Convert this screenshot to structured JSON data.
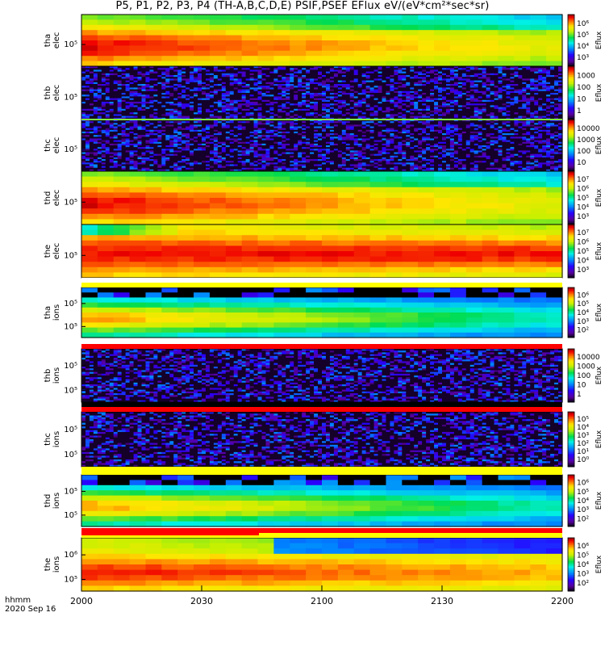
{
  "title": "P5, P1, P2, P3, P4 (TH-A,B,C,D,E) PSIF,PSEF EFlux eV/(eV*cm²*sec*sr)",
  "x_axis": {
    "line1": "hhmm",
    "line2": "2020 Sep 16",
    "tick_labels": [
      "2000",
      "2030",
      "2100",
      "2130",
      "2200"
    ]
  },
  "colors": {
    "background": "#ffffff",
    "missing": "#000000"
  },
  "chart_data": [
    {
      "type": "heatmap",
      "probe": "tha",
      "species": "elec",
      "ylabel": [
        "tha",
        "elec"
      ],
      "ytick": "10⁵",
      "colorbar_label": "Eflux",
      "colorbar_ticks": [
        "10⁶",
        "10⁵",
        "10⁴",
        "10³"
      ],
      "cmin": 2.5,
      "cmax": 6.6,
      "pattern": "steady_hot"
    },
    {
      "type": "heatmap",
      "probe": "thb",
      "species": "elec",
      "ylabel": [
        "thb",
        "elec"
      ],
      "ytick": "10⁵",
      "colorbar_label": "Eflux",
      "colorbar_ticks": [
        "1000",
        "100",
        "10",
        "1"
      ],
      "cmin": 0,
      "cmax": 3.8,
      "pattern": "noise"
    },
    {
      "type": "heatmap",
      "probe": "thc",
      "species": "elec",
      "ylabel": [
        "thc",
        "elec"
      ],
      "ytick": "10⁵",
      "colorbar_label": "Eflux",
      "colorbar_ticks": [
        "10000",
        "1000",
        "100",
        "10"
      ],
      "cmin": 0,
      "cmax": 4.6,
      "pattern": "noise"
    },
    {
      "type": "heatmap",
      "probe": "thd",
      "species": "elec",
      "ylabel": [
        "thd",
        "elec"
      ],
      "ytick": "10⁵",
      "colorbar_label": "Eflux",
      "colorbar_ticks": [
        "10⁷",
        "10⁶",
        "10⁵",
        "10⁴",
        "10³"
      ],
      "cmin": 2.5,
      "cmax": 7.3,
      "pattern": "steady_hot"
    },
    {
      "type": "heatmap",
      "probe": "the",
      "species": "elec",
      "ylabel": [
        "the",
        "elec"
      ],
      "ytick": "10⁵",
      "colorbar_label": "Eflux",
      "colorbar_ticks": [
        "10⁷",
        "10⁶",
        "10⁵",
        "10⁴",
        "10³"
      ],
      "cmin": 2.5,
      "cmax": 7.3,
      "pattern": "the_elec"
    },
    {
      "type": "heatmap",
      "probe": "tha",
      "species": "ions",
      "ylabel": [
        "tha",
        "ions"
      ],
      "ytick": [
        "10⁵",
        "10⁵"
      ],
      "colorbar_label": "Eflux",
      "colorbar_ticks": [
        "10⁶",
        "10⁵",
        "10⁴",
        "10³",
        "10²"
      ],
      "cmin": 1.6,
      "cmax": 6.3,
      "pattern": "ions_band"
    },
    {
      "type": "heatmap",
      "probe": "thb",
      "species": "ions",
      "ylabel": [
        "thb",
        "ions"
      ],
      "ytick": [
        "10⁵",
        "10⁵"
      ],
      "colorbar_label": "Eflux",
      "colorbar_ticks": [
        "10000",
        "1000",
        "100",
        "10",
        "1"
      ],
      "cmin": 0,
      "cmax": 4.6,
      "pattern": "noise"
    },
    {
      "type": "heatmap",
      "probe": "thc",
      "species": "ions",
      "ylabel": [
        "thc",
        "ions"
      ],
      "ytick": [
        "10⁵",
        "10⁵"
      ],
      "colorbar_label": "Eflux",
      "colorbar_ticks": [
        "10⁵",
        "10⁴",
        "10³",
        "10²",
        "10¹",
        "10⁰"
      ],
      "cmin": 0,
      "cmax": 5.3,
      "pattern": "noise"
    },
    {
      "type": "heatmap",
      "probe": "thd",
      "species": "ions",
      "ylabel": [
        "thd",
        "ions"
      ],
      "ytick": [
        "10⁵",
        "10⁵"
      ],
      "colorbar_label": "Eflux",
      "colorbar_ticks": [
        "10⁶",
        "10⁵",
        "10⁴",
        "10³",
        "10²"
      ],
      "cmin": 1.6,
      "cmax": 6.3,
      "pattern": "ions_band"
    },
    {
      "type": "heatmap",
      "probe": "the",
      "species": "ions",
      "ylabel": [
        "the",
        "ions"
      ],
      "ytick": [
        "10⁶",
        "10⁵"
      ],
      "colorbar_label": "Eflux",
      "colorbar_ticks": [
        "10⁶",
        "10⁵",
        "10⁴",
        "10³",
        "10²"
      ],
      "cmin": 1.6,
      "cmax": 6.3,
      "pattern": "the_ions"
    }
  ]
}
